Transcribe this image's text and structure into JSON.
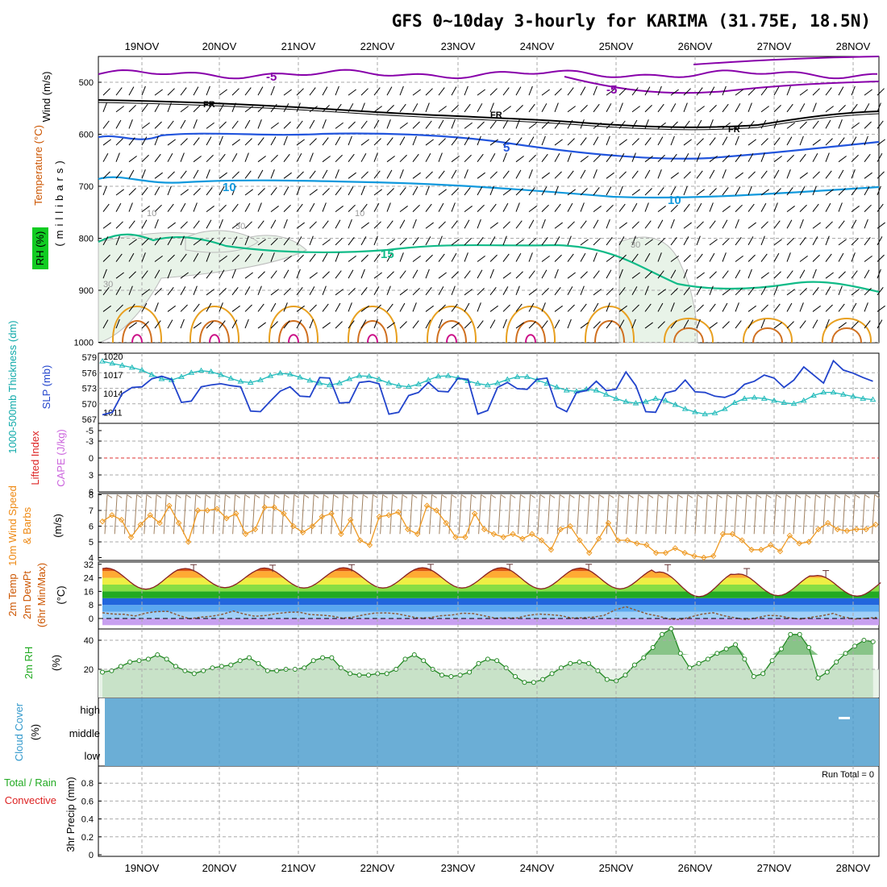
{
  "title": "GFS 0~10day 3-hourly for KARIMA (31.75E, 18.5N)",
  "days": [
    "19NOV",
    "20NOV",
    "21NOV",
    "22NOV",
    "23NOV",
    "24NOV",
    "25NOV",
    "26NOV",
    "27NOV",
    "28NOV"
  ],
  "panels": {
    "upper": {
      "label_wind": "Wind (m/s)",
      "label_temp": "Temperature (°C)",
      "label_rh": "RH (%)",
      "label_units": "(millibars)",
      "yticks": [
        "500",
        "600",
        "700",
        "800",
        "900",
        "1000"
      ],
      "contour_labels": {
        "t5_top": "-5",
        "t5_b": "-5",
        "fr": "FR",
        "p5": "5",
        "p10": "10",
        "p15": "15",
        "rh10": "10",
        "rh30": "30"
      }
    },
    "sfc": {
      "label_thick": "1000-500mb Thickness (dm)",
      "label_slp": "SLP (mb)",
      "yticks_left": [
        "579",
        "576",
        "573",
        "570",
        "567"
      ],
      "yticks_right": [
        "1020",
        "1017",
        "1014",
        "1011"
      ]
    },
    "stab": {
      "label_li": "Lifted Index",
      "label_cape": "CAPE (J/kg)",
      "yticks": [
        "-5",
        "-3",
        "0",
        "3",
        "6"
      ]
    },
    "wind10": {
      "label_a": "10m Wind Speed",
      "label_b": "& Barbs",
      "label_unit": "(m/s)",
      "yticks": [
        "8",
        "7",
        "6",
        "5",
        "4"
      ]
    },
    "temp2m": {
      "label_a": "2m Temp",
      "label_b": "2m DewPt",
      "label_c": "(6hr Min/Max)",
      "label_unit": "(°C)",
      "yticks": [
        "32",
        "24",
        "16",
        "8",
        "0"
      ]
    },
    "rh2m": {
      "label": "2m RH",
      "label_unit": "(%)",
      "yticks": [
        "40",
        "20"
      ]
    },
    "cloud": {
      "label": "Cloud Cover",
      "label_unit": "(%)",
      "levels": [
        "high",
        "middle",
        "low"
      ]
    },
    "precip": {
      "label_a": "Total / Rain",
      "label_b": "Convective",
      "label_c": "3hr Precip (mm)",
      "yticks": [
        "0.8",
        "0.6",
        "0.4",
        "0.2",
        "0"
      ],
      "run_total": "Run Total = 0"
    }
  },
  "chart_data": [
    {
      "type": "line",
      "panel": "1000-500mb thickness & SLP",
      "x_unit": "days since 18NOV 00Z (3-hourly)",
      "series": [
        {
          "name": "1000-500mb Thickness (dm)",
          "axis": "left",
          "values": [
            578.2,
            577.8,
            577.4,
            577.0,
            576.5,
            575.6,
            574.8,
            574.6,
            575.2,
            576.0,
            576.4,
            576.2,
            575.6,
            574.9,
            574.3,
            574.1,
            574.6,
            575.4,
            575.9,
            575.7,
            575.1,
            574.5,
            574.0,
            573.6,
            574.0,
            574.8,
            575.4,
            575.3,
            574.7,
            574.0,
            573.5,
            573.3,
            573.8,
            574.6,
            575.3,
            575.4,
            575.0,
            574.4,
            573.9,
            573.6,
            574.0,
            574.7,
            575.2,
            575.2,
            574.6,
            573.9,
            573.2,
            572.6,
            572.4,
            572.8,
            572.6,
            571.8,
            571.0,
            570.4,
            570.1,
            570.4,
            571.0,
            570.6,
            569.8,
            569.0,
            568.4,
            568.0,
            568.2,
            569.0,
            570.2,
            571.0,
            571.2,
            571.0,
            570.6,
            570.2,
            570.0,
            570.6,
            571.6,
            572.2,
            572.2,
            571.8,
            571.4,
            571.0,
            570.8,
            570.6,
            570.6
          ]
        },
        {
          "name": "SLP (mb)",
          "axis": "right",
          "values": [
            1010.6,
            1011.0,
            1014.0,
            1015.0,
            1015.1,
            1016.4,
            1016.8,
            1016.3,
            1012.6,
            1012.8,
            1015.1,
            1015.4,
            1015.6,
            1015.3,
            1015.1,
            1011.2,
            1011.1,
            1012.8,
            1014.4,
            1015.1,
            1013.6,
            1013.5,
            1016.6,
            1016.5,
            1012.5,
            1012.6,
            1015.8,
            1016.0,
            1015.6,
            1010.7,
            1011.0,
            1013.7,
            1014.2,
            1015.8,
            1014.4,
            1014.3,
            1016.5,
            1016.3,
            1010.7,
            1011.3,
            1015.0,
            1015.8,
            1014.8,
            1014.7,
            1016.3,
            1016.5,
            1011.9,
            1011.1,
            1014.2,
            1014.5,
            1016.0,
            1014.5,
            1014.7,
            1017.5,
            1015.3,
            1011.1,
            1011.0,
            1014.1,
            1014.5,
            1016.2,
            1014.3,
            1014.2,
            1013.6,
            1013.4,
            1014.0,
            1015.5,
            1016.0,
            1017.0,
            1016.5,
            1015.0,
            1016.2,
            1018.3,
            1017.0,
            1015.7,
            1019.3,
            1017.8,
            1017.3,
            1016.6,
            1016.0,
            1015.3,
            1016.7
          ]
        }
      ]
    },
    {
      "type": "line",
      "panel": "10m Wind Speed",
      "ylim": [
        4,
        8
      ],
      "series": [
        {
          "name": "10m Wind Speed (m/s)",
          "values": [
            6.3,
            6.7,
            6.4,
            5.3,
            6.1,
            6.7,
            6.2,
            7.3,
            6.2,
            5.0,
            7.0,
            7.0,
            7.1,
            6.5,
            6.8,
            5.5,
            5.8,
            7.2,
            7.2,
            6.8,
            6.0,
            5.6,
            6.0,
            6.6,
            6.8,
            5.5,
            6.4,
            5.1,
            4.8,
            6.6,
            6.7,
            6.9,
            5.8,
            5.5,
            7.3,
            7.0,
            6.2,
            5.3,
            5.3,
            6.8,
            5.8,
            5.5,
            5.3,
            5.5,
            5.2,
            5.5,
            5.1,
            4.5,
            5.8,
            6.0,
            5.1,
            4.3,
            5.2,
            6.2,
            5.1,
            5.1,
            4.9,
            4.8,
            4.3,
            4.3,
            4.6,
            4.3,
            4.1,
            4.0,
            4.1,
            5.5,
            5.5,
            5.1,
            4.5,
            4.5,
            4.8,
            4.4,
            5.4,
            4.9,
            5.0,
            5.8,
            6.2,
            5.8,
            5.7,
            5.8,
            5.8,
            6.1
          ]
        }
      ]
    },
    {
      "type": "area",
      "panel": "2m Temp / DewPt",
      "ylim": [
        -4,
        32
      ],
      "series": [
        {
          "name": "2m Temp (°C)",
          "diurnal": {
            "max": [
              29.8,
              29.5,
              29.8,
              30.0,
              30.0,
              30.0,
              29.8,
              27.5,
              26.3,
              25.4
            ],
            "min": [
              17.3,
              18.2,
              18.0,
              18.0,
              18.0,
              17.5,
              17.5,
              12.9,
              13.5,
              13.2
            ]
          }
        },
        {
          "name": "2m DewPt (°C)",
          "values": [
            3.4,
            2.6,
            2.5,
            1.5,
            3.2,
            4.1,
            4.2,
            1.8,
            -0.2,
            0.8,
            1.3,
            2.5,
            4.4,
            2.6,
            1.3,
            1.8,
            2.9,
            3.6,
            3.8,
            2.4,
            2.0,
            1.5,
            0.2,
            0.8,
            2.2,
            3.2,
            3.3,
            2.8,
            1.5,
            0.2,
            0.5,
            1.6,
            2.0,
            3.1,
            2.9,
            1.6,
            0.2,
            0.4,
            0.3,
            1.8,
            2.6,
            2.3,
            1.7,
            0.3,
            0.4,
            0.8,
            1.8,
            5.0,
            7.0,
            4.7,
            2.6,
            1.4,
            -0.4,
            -0.6,
            1.0,
            2.6,
            3.4,
            1.6,
            0.4,
            -0.6,
            0.4,
            1.8,
            1.6,
            0.4,
            -0.4,
            0.7,
            1.6,
            3.0,
            0.8,
            -0.3,
            0.1,
            0.6,
            1.3
          ]
        }
      ]
    },
    {
      "type": "area",
      "panel": "2m RH",
      "ylim": [
        0,
        50
      ],
      "series": [
        {
          "name": "2m RH (%)",
          "values": [
            18,
            19,
            22,
            25,
            26,
            27,
            30,
            27,
            22,
            19,
            17,
            19,
            21,
            22,
            23,
            26,
            28,
            24,
            19,
            19,
            20,
            20,
            21,
            26,
            28,
            28,
            21,
            17,
            16,
            16,
            17,
            17,
            20,
            27,
            30,
            26,
            20,
            16,
            15,
            16,
            18,
            24,
            27,
            26,
            21,
            15,
            11,
            11,
            13,
            17,
            21,
            24,
            25,
            24,
            19,
            13,
            12,
            16,
            23,
            28,
            35,
            44,
            48,
            31,
            21,
            24,
            27,
            31,
            34,
            37,
            27,
            15,
            17,
            26,
            34,
            44,
            44,
            35,
            14,
            18,
            25,
            31,
            36,
            40,
            39
          ]
        }
      ]
    },
    {
      "type": "line",
      "panel": "3hr Precip",
      "ylim": [
        0,
        1
      ],
      "series": [
        {
          "name": "3hr Precip (mm)",
          "values": [
            0,
            0,
            0,
            0,
            0,
            0,
            0,
            0,
            0,
            0,
            0,
            0,
            0,
            0,
            0,
            0,
            0,
            0,
            0,
            0,
            0,
            0,
            0,
            0,
            0,
            0,
            0,
            0,
            0,
            0,
            0,
            0,
            0,
            0,
            0,
            0,
            0,
            0,
            0,
            0,
            0,
            0,
            0,
            0,
            0,
            0,
            0,
            0,
            0,
            0,
            0,
            0,
            0,
            0,
            0,
            0,
            0,
            0,
            0,
            0,
            0,
            0,
            0,
            0,
            0,
            0,
            0,
            0,
            0,
            0,
            0,
            0,
            0,
            0,
            0,
            0,
            0,
            0,
            0,
            0,
            0
          ]
        }
      ]
    }
  ]
}
